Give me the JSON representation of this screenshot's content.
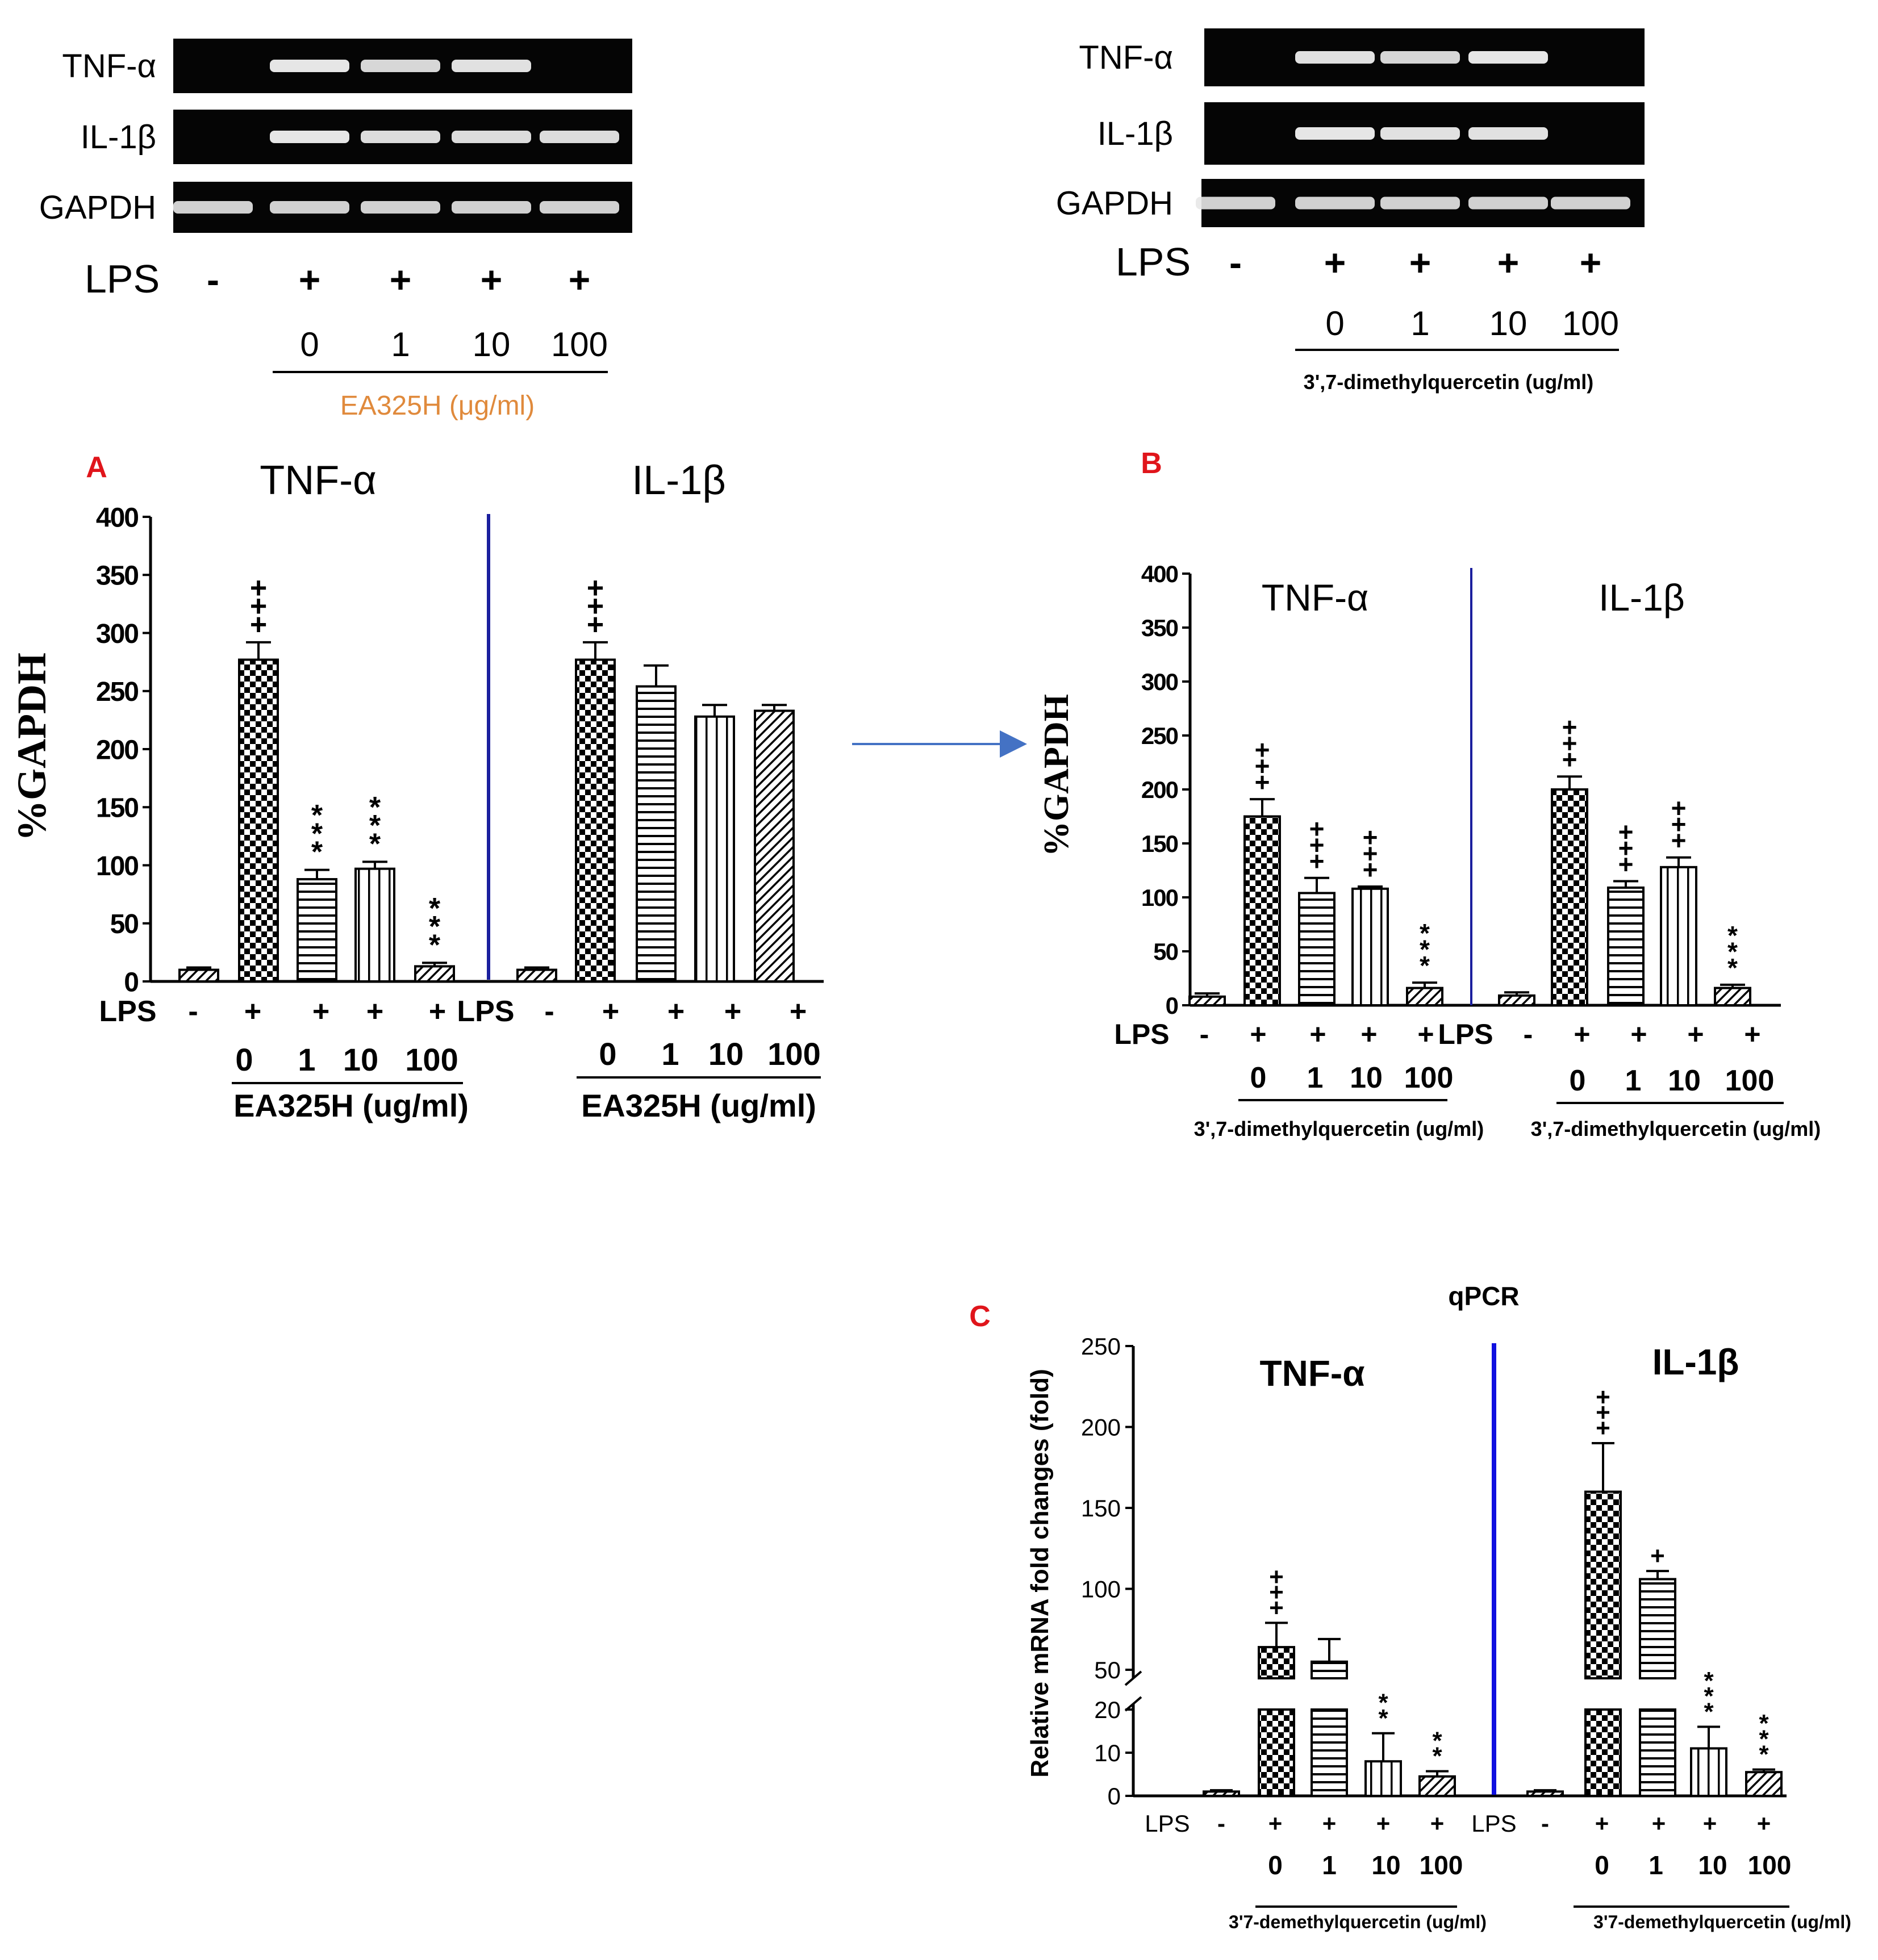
{
  "gels": [
    {
      "rows": [
        "TNF-α",
        "IL-1β",
        "GAPDH"
      ],
      "band_intensity": [
        [
          0,
          1,
          0.85,
          0.95,
          0
        ],
        [
          0,
          1,
          0.9,
          0.9,
          0.9
        ],
        [
          0.8,
          0.8,
          0.8,
          0.8,
          0.8
        ]
      ],
      "lps_label": "LPS",
      "lps_marks": [
        "-",
        "+",
        "+",
        "+",
        "+"
      ],
      "doses": [
        "0",
        "1",
        "10",
        "100"
      ],
      "caption": "EA325H (μg/ml)",
      "caption_color": "#E08A3C"
    },
    {
      "rows": [
        "TNF-α",
        "IL-1β",
        "GAPDH"
      ],
      "band_intensity": [
        [
          0,
          0.95,
          0.85,
          1,
          0
        ],
        [
          0,
          1,
          0.95,
          0.95,
          0
        ],
        [
          0.8,
          0.8,
          0.8,
          0.8,
          0.8
        ]
      ],
      "lps_label": "LPS",
      "lps_marks": [
        "-",
        "+",
        "+",
        "+",
        "+"
      ],
      "doses": [
        "0",
        "1",
        "10",
        "100"
      ],
      "caption": "3',7-dimethylquercetin (ug/ml)"
    }
  ],
  "panel_letters": {
    "A": "A",
    "B": "B",
    "C": "C",
    "color": "#E0151B"
  },
  "divider_color": "#1B1F9E",
  "arrow_color": "#4472C4",
  "chart_data": [
    {
      "type": "bar",
      "panel": "A",
      "ylabel": "%GAPDH",
      "ylim": [
        0,
        400
      ],
      "yticks": [
        0,
        50,
        100,
        150,
        200,
        250,
        300,
        350,
        400
      ],
      "groups": [
        {
          "title": "TNF-α",
          "lps": [
            "-",
            "+",
            "+",
            "+",
            "+"
          ],
          "doses": [
            "",
            "0",
            "1",
            "10",
            "100"
          ],
          "values": [
            10,
            277,
            88,
            97,
            13
          ],
          "errors": [
            2,
            15,
            8,
            6,
            3
          ],
          "patterns": [
            "diag",
            "check",
            "hline",
            "vline",
            "diag"
          ],
          "annotations": [
            "",
            "+++",
            "***",
            "***",
            "***"
          ],
          "caption": "EA325H (ug/ml)"
        },
        {
          "title": "IL-1β",
          "lps": [
            "-",
            "+",
            "+",
            "+",
            "+"
          ],
          "doses": [
            "",
            "0",
            "1",
            "10",
            "100"
          ],
          "values": [
            10,
            277,
            254,
            228,
            233
          ],
          "errors": [
            2,
            15,
            18,
            10,
            5
          ],
          "patterns": [
            "diag",
            "check",
            "hline",
            "vline",
            "diag"
          ],
          "annotations": [
            "",
            "+++",
            "",
            "",
            ""
          ],
          "caption": "EA325H (ug/ml)"
        }
      ],
      "lps_label": "LPS"
    },
    {
      "type": "bar",
      "panel": "B",
      "ylabel": "%GAPDH",
      "ylim": [
        0,
        400
      ],
      "yticks": [
        0,
        50,
        100,
        150,
        200,
        250,
        300,
        350,
        400
      ],
      "groups": [
        {
          "title": "TNF-α",
          "lps": [
            "-",
            "+",
            "+",
            "+",
            "+"
          ],
          "doses": [
            "",
            "0",
            "1",
            "10",
            "100"
          ],
          "values": [
            8,
            175,
            104,
            108,
            16
          ],
          "errors": [
            3,
            16,
            14,
            2,
            5
          ],
          "patterns": [
            "diag",
            "check",
            "hline",
            "vline",
            "diag"
          ],
          "annotations": [
            "",
            "+++",
            "+++",
            "+++",
            "***"
          ],
          "caption": "3',7-dimethylquercetin (ug/ml)"
        },
        {
          "title": "IL-1β",
          "lps": [
            "-",
            "+",
            "+",
            "+",
            "+"
          ],
          "doses": [
            "",
            "0",
            "1",
            "10",
            "100"
          ],
          "values": [
            9,
            200,
            109,
            128,
            16
          ],
          "errors": [
            3,
            12,
            6,
            9,
            3
          ],
          "patterns": [
            "diag",
            "check",
            "hline",
            "vline",
            "diag"
          ],
          "annotations": [
            "",
            "+++",
            "+++",
            "+++",
            "***"
          ],
          "caption": "3',7-dimethylquercetin (ug/ml)"
        }
      ],
      "lps_label": "LPS"
    },
    {
      "type": "bar",
      "panel": "C",
      "title": "qPCR",
      "ylabel": "Relative mRNA fold changes (fold)",
      "ylim": [
        0,
        250
      ],
      "axis_break": [
        20,
        50
      ],
      "yticks": [
        0,
        10,
        20,
        50,
        100,
        150,
        200,
        250
      ],
      "groups": [
        {
          "title": "TNF-α",
          "lps": [
            "-",
            "+",
            "+",
            "+",
            "+"
          ],
          "doses": [
            "",
            "0",
            "1",
            "10",
            "100"
          ],
          "values": [
            1,
            64,
            55,
            8,
            4.5
          ],
          "errors": [
            0.3,
            15,
            14,
            6.5,
            1.2
          ],
          "patterns": [
            "diag",
            "check",
            "hline",
            "vline",
            "diag"
          ],
          "annotations": [
            "",
            "+++",
            "",
            "**",
            "**"
          ],
          "caption": "3'7-demethylquercetin (ug/ml)"
        },
        {
          "title": "IL-1β",
          "lps": [
            "-",
            "+",
            "+",
            "+",
            "+"
          ],
          "doses": [
            "",
            "0",
            "1",
            "10",
            "100"
          ],
          "values": [
            1,
            160,
            106,
            11,
            5.5
          ],
          "errors": [
            0.3,
            30,
            5,
            5,
            0.6
          ],
          "patterns": [
            "diag",
            "check",
            "hline",
            "vline",
            "diag"
          ],
          "annotations": [
            "",
            "+++",
            "+",
            "***",
            "***"
          ],
          "caption": "3'7-demethylquercetin (ug/ml)"
        }
      ],
      "lps_label": "LPS"
    }
  ]
}
